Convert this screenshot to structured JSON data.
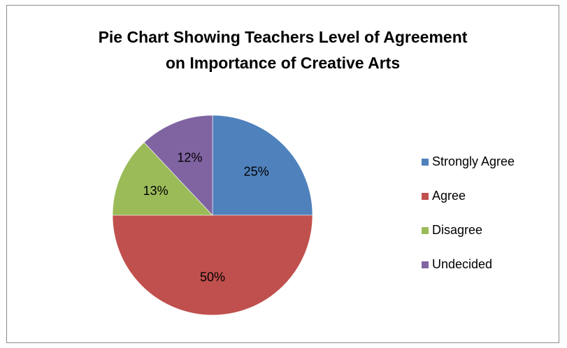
{
  "chart_data": {
    "type": "pie",
    "title": "Pie Chart Showing Teachers Level of Agreement on Importance of Creative Arts",
    "title_lines": [
      "Pie Chart Showing Teachers Level of Agreement",
      "on Importance of Creative Arts"
    ],
    "legend_position": "right",
    "slices": [
      {
        "label": "Strongly Agree",
        "value": 25,
        "display": "25%",
        "color": "#4F81BD"
      },
      {
        "label": "Agree",
        "value": 50,
        "display": "50%",
        "color": "#C0504D"
      },
      {
        "label": "Disagree",
        "value": 13,
        "display": "13%",
        "color": "#9BBB59"
      },
      {
        "label": "Undecided",
        "value": 12,
        "display": "12%",
        "color": "#8064A2"
      }
    ]
  }
}
